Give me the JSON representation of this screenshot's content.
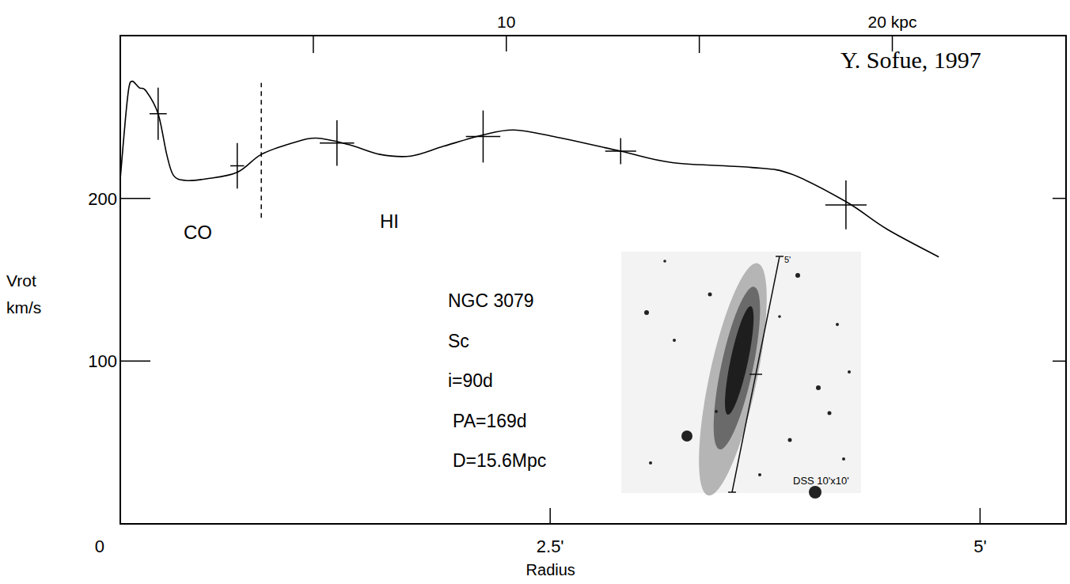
{
  "chart_data": {
    "type": "line",
    "xlabel": "Radius",
    "ylabel": [
      "Vrot",
      "km/s"
    ],
    "xlim": [
      0,
      5.5
    ],
    "xticks": [
      0,
      {
        "value": 2.5,
        "label": "2.5'"
      },
      {
        "value": 5,
        "label": "5'"
      }
    ],
    "x2lim": [
      0,
      24.5
    ],
    "x2ticks": [
      10,
      {
        "value": 20,
        "label": "20 kpc"
      }
    ],
    "x2minor_ticks": [
      5,
      15
    ],
    "ylim": [
      0,
      300
    ],
    "yticks": [
      100,
      200
    ],
    "grid": false,
    "series": [
      {
        "type": "line",
        "color": "#000000",
        "line_style": "solid",
        "x": [
          0,
          0.03,
          0.05,
          0.07,
          0.11,
          0.15,
          0.22,
          0.27,
          0.31,
          0.38,
          0.5,
          0.68,
          0.82,
          1.0,
          1.14,
          1.33,
          1.51,
          1.69,
          1.88,
          2.11,
          2.29,
          2.52,
          2.91,
          3.21,
          3.67,
          3.9,
          4.22,
          4.46,
          4.76
        ],
        "values": [
          212,
          249,
          268,
          272,
          268,
          266,
          252,
          227,
          214,
          211,
          212,
          216,
          227,
          234,
          237,
          233,
          227,
          226,
          232,
          239,
          242,
          238,
          229,
          222,
          219,
          215,
          198,
          181,
          164
        ]
      },
      {
        "type": "scatter",
        "marker": "cross",
        "color": "#000000",
        "x": [
          0.22,
          0.68,
          1.26,
          2.11,
          2.91,
          4.22
        ],
        "values": [
          252,
          220,
          234,
          238,
          229,
          196
        ],
        "errors": [
          16,
          14,
          14,
          16,
          8,
          15
        ],
        "x_errors": [
          0.05,
          0.04,
          0.1,
          0.1,
          0.09,
          0.12
        ]
      }
    ],
    "divider": {
      "x": 0.82,
      "y": [
        188,
        271
      ],
      "line_style": "dashed"
    },
    "annotations": [
      {
        "text": "Y. Sofue, 1997"
      },
      {
        "text": "CO"
      },
      {
        "text": "HI"
      }
    ],
    "info": [
      "NGC 3079",
      "Sc",
      "i=90d",
      "PA=169d",
      "D=15.6Mpc"
    ],
    "inset": {
      "scale_label": "5'",
      "label": "DSS 10'x10'"
    }
  }
}
